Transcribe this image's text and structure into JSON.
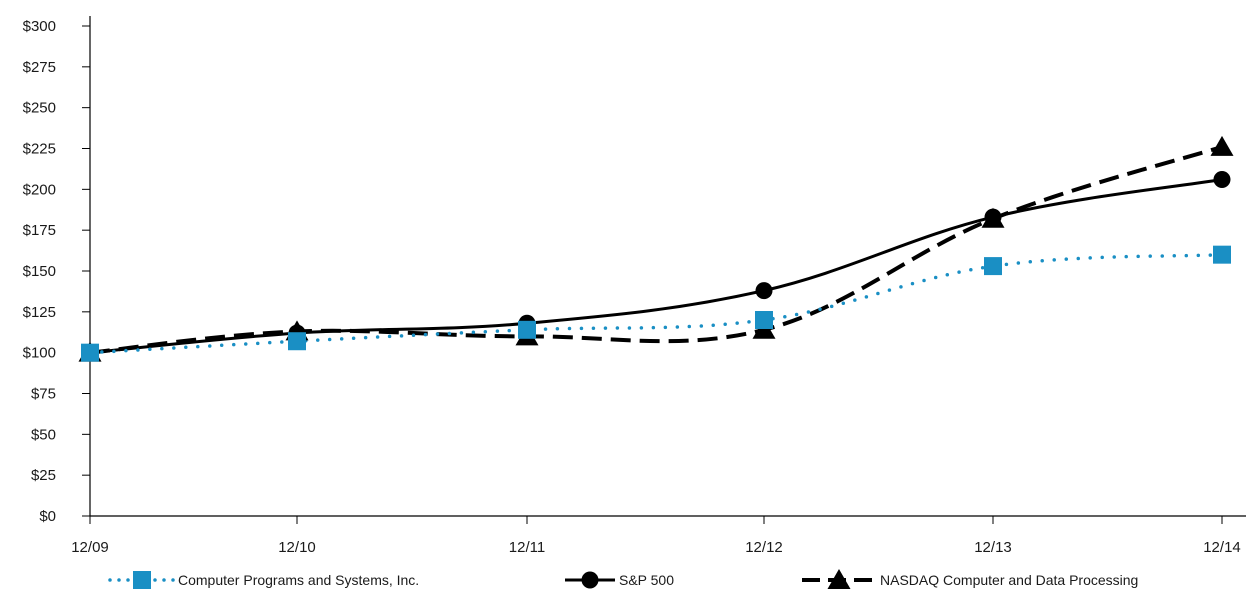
{
  "chart_data": {
    "type": "line",
    "categories": [
      "12/09",
      "12/10",
      "12/11",
      "12/12",
      "12/13",
      "12/14"
    ],
    "y_ticks": [
      "$0",
      "$25",
      "$50",
      "$75",
      "$100",
      "$125",
      "$150",
      "$175",
      "$200",
      "$225",
      "$250",
      "$275",
      "$300"
    ],
    "ylim": [
      0,
      300
    ],
    "y_step": 25,
    "grid": false,
    "legend_position": "bottom",
    "series": [
      {
        "name": "Computer Programs and Systems, Inc.",
        "values": [
          100,
          107,
          114,
          120,
          153,
          160
        ],
        "color": "#1a8fc4",
        "line_style": "dotted",
        "marker": "square"
      },
      {
        "name": "S&P 500",
        "values": [
          100,
          112,
          118,
          138,
          183,
          206
        ],
        "color": "#000000",
        "line_style": "solid",
        "marker": "circle"
      },
      {
        "name": "NASDAQ Computer and Data Processing",
        "values": [
          100,
          113,
          110,
          114,
          182,
          226
        ],
        "color": "#000000",
        "line_style": "dashed",
        "marker": "triangle"
      }
    ]
  }
}
